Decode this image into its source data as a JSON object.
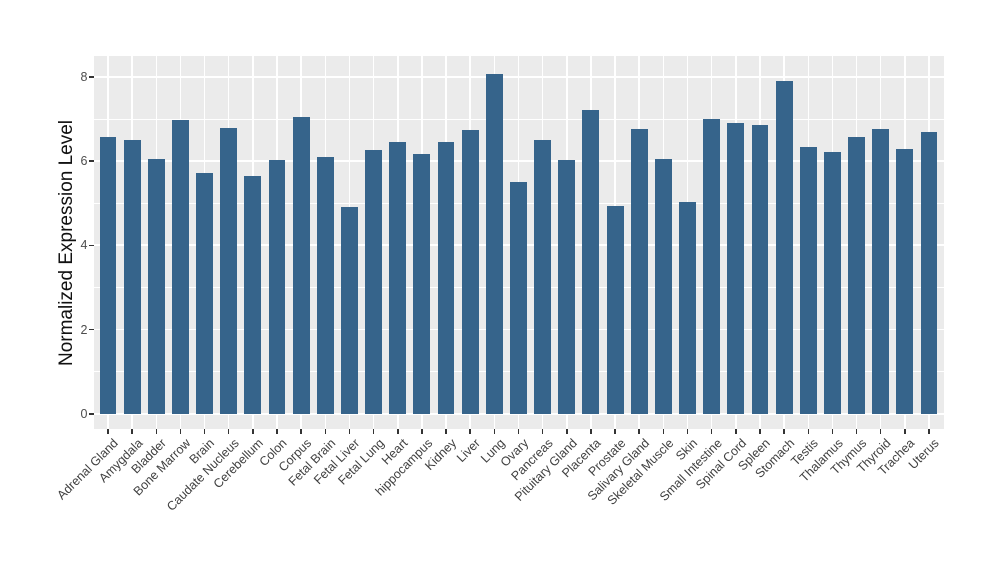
{
  "chart_data": {
    "type": "bar",
    "title": "",
    "xlabel": "",
    "ylabel": "Normalized Expression Level",
    "categories": [
      "Adrenal Gland",
      "Amygdala",
      "Bladder",
      "Bone Marrow",
      "Brain",
      "Caudate Nucleus",
      "Cerebellum",
      "Colon",
      "Corpus",
      "Fetal Brain",
      "Fetal Liver",
      "Fetal Lung",
      "Heart",
      "hippocampus",
      "Kidney",
      "Liver",
      "Lung",
      "Ovary",
      "Pancreas",
      "Pituitary Gland",
      "Placenta",
      "Prostate",
      "Salivary Gland",
      "Skeletal Muscle",
      "Skin",
      "Small Intestine",
      "Spinal Cord",
      "Spleen",
      "Stomach",
      "Testis",
      "Thalamus",
      "Thymus",
      "Thyroid",
      "Trachea",
      "Uterus"
    ],
    "values": [
      6.58,
      6.51,
      6.06,
      6.98,
      5.73,
      6.79,
      5.66,
      6.02,
      7.06,
      6.1,
      4.92,
      6.27,
      6.45,
      6.18,
      6.46,
      6.75,
      8.08,
      5.51,
      6.51,
      6.03,
      7.22,
      4.94,
      6.77,
      6.06,
      5.03,
      7.0,
      6.92,
      6.87,
      7.91,
      6.33,
      6.21,
      6.57,
      6.77,
      6.29,
      6.7
    ],
    "y_ticks": [
      0,
      2,
      4,
      6,
      8
    ],
    "y_minor_ticks": [
      1,
      3,
      5,
      7
    ],
    "ylim": [
      -0.36,
      8.5
    ],
    "x_label_angle": 45,
    "legend": "none",
    "grid": "on",
    "colors": {
      "bar": "#36648B",
      "panel_background": "#EBEBEB",
      "grid": "#FFFFFF",
      "axis_text": "#4D4D4D",
      "axis_title": "#111111",
      "figure_background": "#FFFFFF"
    }
  }
}
